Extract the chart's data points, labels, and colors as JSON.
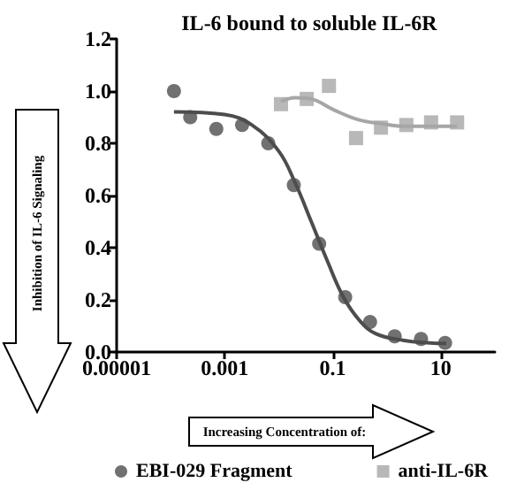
{
  "chart_data": {
    "type": "scatter",
    "title": "IL-6 bound to soluble IL-6R",
    "annotations": [
      "Inhibition of IL-6 Signaling",
      "Increasing Concentration of:"
    ],
    "log": "x",
    "xlim": [
      1e-05,
      100
    ],
    "xticks": [
      {
        "value": 1e-05,
        "label": "0.00001"
      },
      {
        "value": 0.001,
        "label": "0.001"
      },
      {
        "value": 0.1,
        "label": "0.1"
      },
      {
        "value": 10,
        "label": "10"
      }
    ],
    "ylim": [
      0,
      1.2
    ],
    "yticks": [
      {
        "value": 0,
        "label": "0.0"
      },
      {
        "value": 0.2,
        "label": "0.2"
      },
      {
        "value": 0.4,
        "label": "0.4"
      },
      {
        "value": 0.6,
        "label": "0.6"
      },
      {
        "value": 0.8,
        "label": "0.8"
      },
      {
        "value": 1,
        "label": "1.0"
      },
      {
        "value": 1.2,
        "label": "1.2"
      }
    ],
    "grid": false,
    "legend": "bottom",
    "series": [
      {
        "name": "EBI-029 Fragment",
        "marker": "circle",
        "color": "#4d4d4d",
        "x": [
          0.000115,
          0.00023,
          0.0007,
          0.0021,
          0.0064,
          0.019,
          0.056,
          0.17,
          0.49,
          1.4,
          4.3,
          12
        ],
        "values": [
          1.0,
          0.9,
          0.855,
          0.87,
          0.8,
          0.64,
          0.415,
          0.21,
          0.115,
          0.06,
          0.05,
          0.035
        ]
      },
      {
        "name": "anti-IL-6R",
        "marker": "square",
        "color": "#a6a6a6",
        "x": [
          0.011,
          0.033,
          0.085,
          0.27,
          0.78,
          2.3,
          6.6,
          20
        ],
        "values": [
          0.95,
          0.97,
          1.02,
          0.82,
          0.86,
          0.87,
          0.88,
          0.88
        ]
      },
      {
        "type": "line",
        "marker": "none",
        "color": "#4d4d4d",
        "x": [
          0.000115,
          0.001,
          0.0032,
          0.01,
          0.02,
          0.04,
          0.079,
          0.158,
          0.316,
          0.63,
          2,
          6.3,
          12.6
        ],
        "values": [
          0.92,
          0.91,
          0.87,
          0.77,
          0.65,
          0.5,
          0.35,
          0.21,
          0.12,
          0.07,
          0.045,
          0.035,
          0.033
        ]
      },
      {
        "type": "line",
        "marker": "none",
        "color": "#a6a6a6",
        "x": [
          0.011,
          0.02,
          0.04,
          0.1,
          0.3,
          0.8,
          2,
          5,
          20
        ],
        "values": [
          0.96,
          0.975,
          0.97,
          0.93,
          0.89,
          0.875,
          0.865,
          0.865,
          0.865
        ]
      }
    ]
  }
}
